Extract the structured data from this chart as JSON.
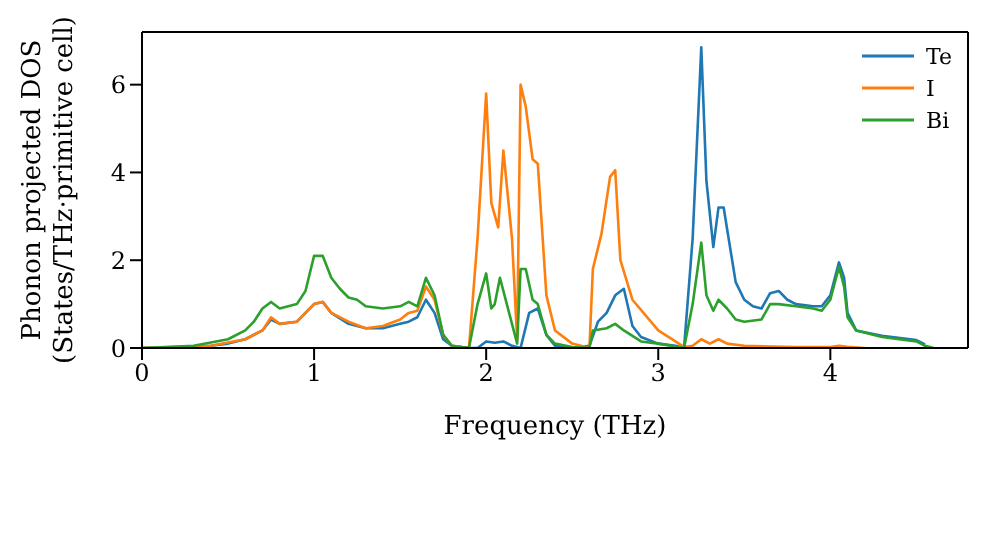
{
  "chart_data": {
    "type": "line",
    "xlabel": "Frequency (THz)",
    "ylabel": "Phonon projected DOS\n(States/THz·primitive cell)",
    "xlim": [
      0,
      4.8
    ],
    "ylim": [
      0,
      7.2
    ],
    "xticks": [
      0,
      1,
      2,
      3,
      4
    ],
    "yticks": [
      0,
      2,
      4,
      6
    ],
    "legend": "top right",
    "grid": false,
    "marker": "none",
    "line_style": "solid",
    "series": [
      {
        "name": "Te",
        "color": "#1f77b4",
        "x": [
          0,
          0.2,
          0.4,
          0.5,
          0.6,
          0.7,
          0.75,
          0.8,
          0.9,
          1.0,
          1.05,
          1.1,
          1.2,
          1.3,
          1.4,
          1.5,
          1.55,
          1.6,
          1.65,
          1.7,
          1.75,
          1.8,
          1.9,
          1.95,
          2.0,
          2.05,
          2.1,
          2.15,
          2.2,
          2.25,
          2.3,
          2.35,
          2.4,
          2.5,
          2.6,
          2.65,
          2.7,
          2.75,
          2.8,
          2.85,
          2.9,
          3.0,
          3.1,
          3.15,
          3.2,
          3.25,
          3.28,
          3.32,
          3.35,
          3.38,
          3.45,
          3.5,
          3.55,
          3.6,
          3.65,
          3.7,
          3.75,
          3.8,
          3.9,
          3.95,
          4.0,
          4.05,
          4.08,
          4.1,
          4.15,
          4.3,
          4.5,
          4.55
        ],
        "values": [
          0,
          0.01,
          0.05,
          0.1,
          0.2,
          0.4,
          0.65,
          0.55,
          0.6,
          1.0,
          1.05,
          0.8,
          0.55,
          0.45,
          0.45,
          0.55,
          0.6,
          0.7,
          1.1,
          0.8,
          0.2,
          0.05,
          0,
          0,
          0.15,
          0.12,
          0.15,
          0.05,
          0,
          0.8,
          0.9,
          0.3,
          0.05,
          0,
          0.05,
          0.6,
          0.8,
          1.2,
          1.35,
          0.5,
          0.25,
          0.1,
          0.05,
          0,
          2.5,
          6.85,
          3.8,
          2.3,
          3.2,
          3.2,
          1.5,
          1.1,
          0.95,
          0.9,
          1.25,
          1.3,
          1.1,
          1.0,
          0.95,
          0.95,
          1.2,
          1.95,
          1.6,
          0.8,
          0.4,
          0.28,
          0.18,
          0.08
        ]
      },
      {
        "name": "I",
        "color": "#ff7f0e",
        "x": [
          0,
          0.4,
          0.6,
          0.7,
          0.75,
          0.8,
          0.9,
          1.0,
          1.05,
          1.1,
          1.2,
          1.3,
          1.4,
          1.5,
          1.55,
          1.6,
          1.65,
          1.7,
          1.75,
          1.8,
          1.9,
          1.95,
          2.0,
          2.03,
          2.07,
          2.1,
          2.15,
          2.18,
          2.2,
          2.23,
          2.27,
          2.3,
          2.35,
          2.4,
          2.5,
          2.6,
          2.62,
          2.67,
          2.72,
          2.75,
          2.78,
          2.85,
          3.0,
          3.1,
          3.15,
          3.2,
          3.25,
          3.3,
          3.35,
          3.4,
          3.5,
          3.8,
          4.0,
          4.05,
          4.1,
          4.2
        ],
        "values": [
          0,
          0.05,
          0.2,
          0.4,
          0.7,
          0.55,
          0.6,
          1.0,
          1.05,
          0.8,
          0.6,
          0.45,
          0.5,
          0.65,
          0.8,
          0.85,
          1.4,
          1.1,
          0.3,
          0.05,
          0,
          2.5,
          5.8,
          3.3,
          2.75,
          4.5,
          2.5,
          0.2,
          6.0,
          5.5,
          4.3,
          4.2,
          1.2,
          0.4,
          0.1,
          0,
          1.8,
          2.6,
          3.9,
          4.05,
          2.0,
          1.1,
          0.4,
          0.15,
          0.02,
          0.05,
          0.2,
          0.1,
          0.2,
          0.1,
          0.05,
          0.02,
          0.02,
          0.05,
          0.03,
          0
        ]
      },
      {
        "name": "Bi",
        "color": "#2ca02c",
        "x": [
          0,
          0.3,
          0.5,
          0.6,
          0.65,
          0.7,
          0.75,
          0.8,
          0.9,
          0.95,
          1.0,
          1.05,
          1.1,
          1.15,
          1.2,
          1.25,
          1.3,
          1.4,
          1.5,
          1.55,
          1.6,
          1.65,
          1.7,
          1.75,
          1.8,
          1.9,
          1.95,
          2.0,
          2.03,
          2.05,
          2.08,
          2.12,
          2.18,
          2.2,
          2.23,
          2.27,
          2.3,
          2.35,
          2.4,
          2.5,
          2.6,
          2.62,
          2.7,
          2.75,
          2.8,
          2.9,
          3.0,
          3.15,
          3.2,
          3.25,
          3.28,
          3.32,
          3.35,
          3.4,
          3.45,
          3.5,
          3.6,
          3.65,
          3.7,
          3.8,
          3.9,
          3.95,
          4.0,
          4.05,
          4.08,
          4.1,
          4.15,
          4.3,
          4.5,
          4.55,
          4.6
        ],
        "values": [
          0,
          0.05,
          0.2,
          0.4,
          0.6,
          0.9,
          1.05,
          0.9,
          1.0,
          1.3,
          2.1,
          2.1,
          1.6,
          1.35,
          1.15,
          1.1,
          0.95,
          0.9,
          0.95,
          1.05,
          0.95,
          1.6,
          1.2,
          0.3,
          0.05,
          0,
          1.0,
          1.7,
          0.9,
          1.0,
          1.6,
          1.0,
          0.1,
          1.8,
          1.8,
          1.1,
          1.0,
          0.3,
          0.1,
          0.02,
          0,
          0.4,
          0.45,
          0.55,
          0.4,
          0.15,
          0.1,
          0,
          1.0,
          2.4,
          1.2,
          0.85,
          1.1,
          0.9,
          0.65,
          0.6,
          0.65,
          1.0,
          1.0,
          0.95,
          0.9,
          0.85,
          1.1,
          1.85,
          1.4,
          0.7,
          0.4,
          0.25,
          0.15,
          0.05,
          0
        ]
      }
    ]
  }
}
